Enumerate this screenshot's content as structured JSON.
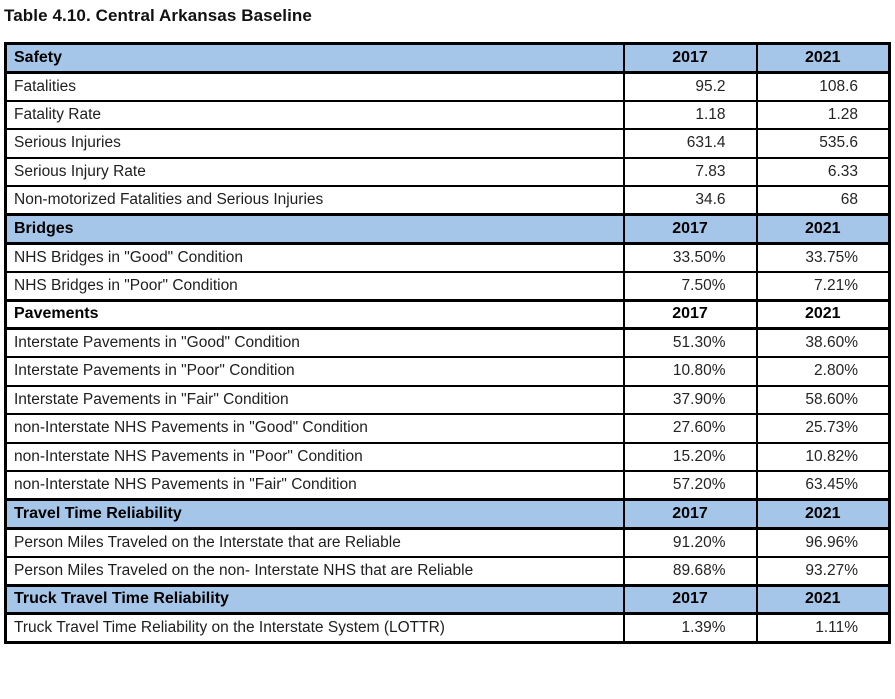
{
  "title": "Table 4.10. Central Arkansas Baseline",
  "columns": [
    "2017",
    "2021"
  ],
  "colors": {
    "section_header_bg": "#A5C6E8",
    "border": "#000000",
    "text": "#1e1e1e"
  },
  "sections": [
    {
      "header": "Safety",
      "style": "blue",
      "rows": [
        {
          "label": "Fatalities",
          "values": [
            "95.2",
            "108.6"
          ]
        },
        {
          "label": "Fatality Rate",
          "values": [
            "1.18",
            "1.28"
          ]
        },
        {
          "label": "Serious Injuries",
          "values": [
            "631.4",
            "535.6"
          ]
        },
        {
          "label": "Serious Injury Rate",
          "values": [
            "7.83",
            "6.33"
          ]
        },
        {
          "label": "Non-motorized Fatalities and Serious Injuries",
          "values": [
            "34.6",
            "68"
          ]
        }
      ]
    },
    {
      "header": "Bridges",
      "style": "blue",
      "rows": [
        {
          "label": "NHS Bridges in \"Good\" Condition",
          "values": [
            "33.50%",
            "33.75%"
          ]
        },
        {
          "label": "NHS Bridges in \"Poor\" Condition",
          "values": [
            "7.50%",
            "7.21%"
          ]
        }
      ]
    },
    {
      "header": "Pavements",
      "style": "plain",
      "rows": [
        {
          "label": "Interstate Pavements in \"Good\" Condition",
          "values": [
            "51.30%",
            "38.60%"
          ]
        },
        {
          "label": "Interstate Pavements in \"Poor\" Condition",
          "values": [
            "10.80%",
            "2.80%"
          ]
        },
        {
          "label": "Interstate Pavements in \"Fair\" Condition",
          "values": [
            "37.90%",
            "58.60%"
          ]
        },
        {
          "label": "non-Interstate NHS Pavements in \"Good\" Condition",
          "values": [
            "27.60%",
            "25.73%"
          ]
        },
        {
          "label": "non-Interstate NHS Pavements in \"Poor\" Condition",
          "values": [
            "15.20%",
            "10.82%"
          ]
        },
        {
          "label": "non-Interstate NHS Pavements in \"Fair\" Condition",
          "values": [
            "57.20%",
            "63.45%"
          ]
        }
      ]
    },
    {
      "header": "Travel Time Reliability",
      "style": "blue",
      "rows": [
        {
          "label": "Person Miles Traveled on the Interstate that are Reliable",
          "values": [
            "91.20%",
            "96.96%"
          ]
        },
        {
          "label": "Person Miles Traveled on the non- Interstate NHS that are Reliable",
          "values": [
            "89.68%",
            "93.27%"
          ]
        }
      ]
    },
    {
      "header": "Truck Travel Time Reliability",
      "style": "blue",
      "rows": [
        {
          "label": "Truck Travel Time Reliability on the Interstate System (LOTTR)",
          "values": [
            "1.39%",
            "1.11%"
          ]
        }
      ]
    }
  ]
}
